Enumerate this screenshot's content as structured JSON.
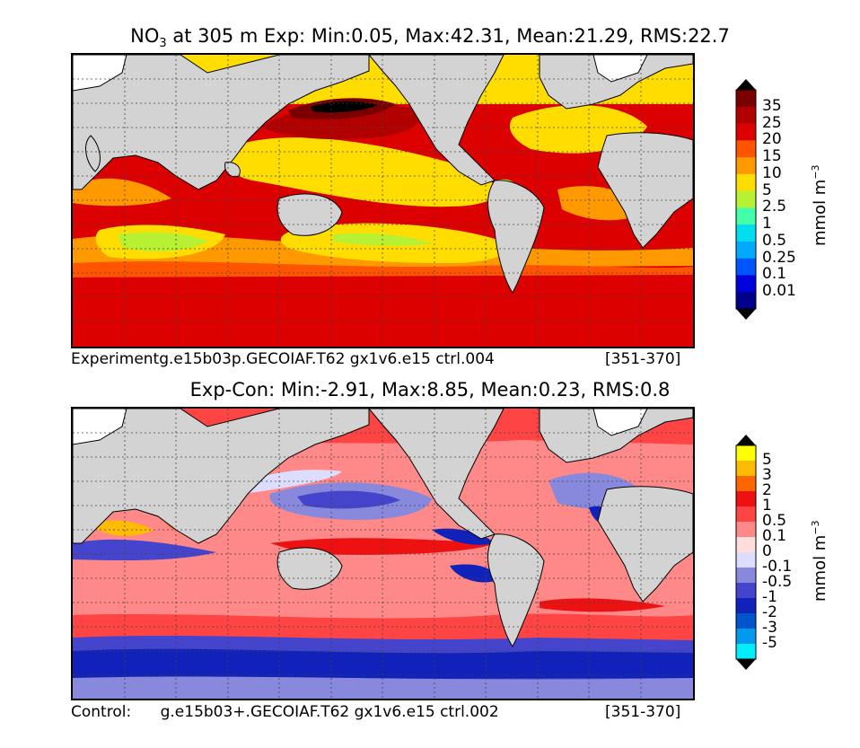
{
  "panel_top": {
    "title_var": "NO",
    "title_sub": "3",
    "title_rest": " at 305 m Exp: Min:0.05, Max:42.31, Mean:21.29, RMS:22.7",
    "caption_left": "Experimentg.e15b03p.GECOIAF.T62 gx1v6.e15 ctrl.004",
    "caption_right": "[351-370]",
    "unit_main": "mmol m",
    "unit_exp": "−3",
    "colorbar_labels": [
      "35",
      "25",
      "20",
      "15",
      "10",
      "5",
      "2.5",
      "1",
      "0.5",
      "0.25",
      "0.1",
      "0.01"
    ],
    "colorbar_colors": [
      "#7a0000",
      "#b20000",
      "#dd0000",
      "#ff5500",
      "#ff9900",
      "#ffdd00",
      "#b8f033",
      "#44ffaa",
      "#00ddee",
      "#00aaff",
      "#0055ff",
      "#0000dd",
      "#00008a"
    ]
  },
  "panel_bottom": {
    "title": "Exp-Con: Min:-2.91, Max:8.85, Mean:0.23, RMS:0.8",
    "caption_left": "Control:      g.e15b03+.GECOIAF.T62 gx1v6.e15 ctrl.002",
    "caption_right": "[351-370]",
    "unit_main": "mmol m",
    "unit_exp": "−3",
    "colorbar_labels": [
      "5",
      "3",
      "2",
      "1",
      "0.5",
      "0.1",
      "0",
      "-0.1",
      "-0.5",
      "-1",
      "-2",
      "-3",
      "-5"
    ],
    "colorbar_colors": [
      "#ffff00",
      "#ffbb00",
      "#ff6600",
      "#ee1111",
      "#ff4444",
      "#ff8888",
      "#ffdddd",
      "#ddddff",
      "#8888dd",
      "#4444cc",
      "#1122bb",
      "#0055cc",
      "#0099ee",
      "#00eeff"
    ]
  }
}
